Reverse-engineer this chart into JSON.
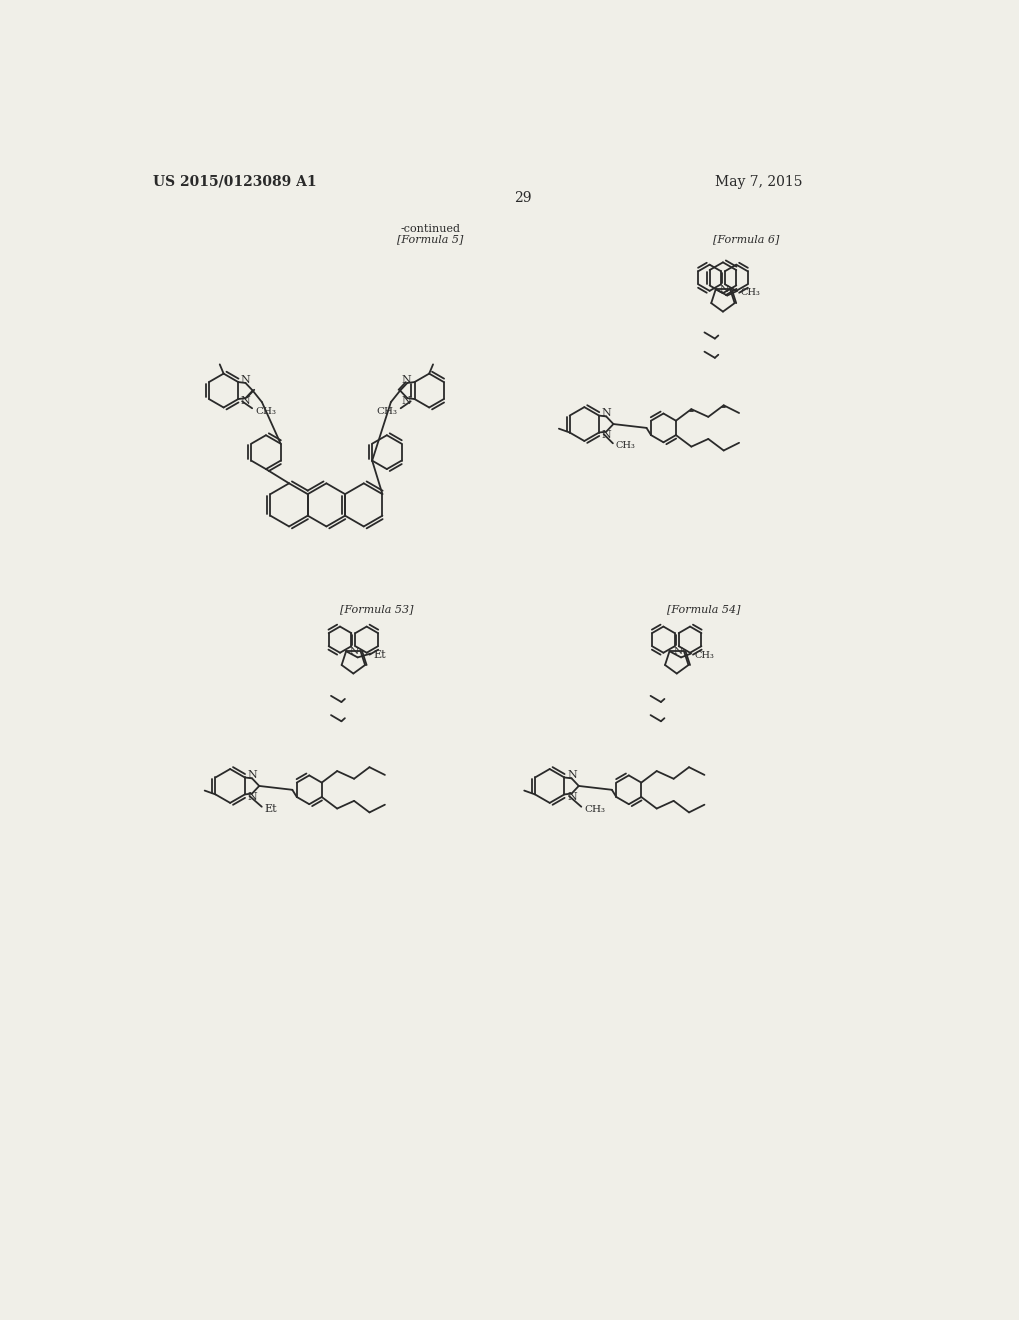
{
  "page_number": "29",
  "patent_number": "US 2015/0123089 A1",
  "patent_date": "May 7, 2015",
  "background_color": "#f0efe8",
  "text_color": "#2a2a2a",
  "continued_label": "-continued",
  "formula_labels": {
    "f5": "[Formula 5]",
    "f6": "[Formula 6]",
    "f53": "[Formula 53]",
    "f54": "[Formula 54]"
  },
  "lw": 1.3,
  "ring_r": 24
}
